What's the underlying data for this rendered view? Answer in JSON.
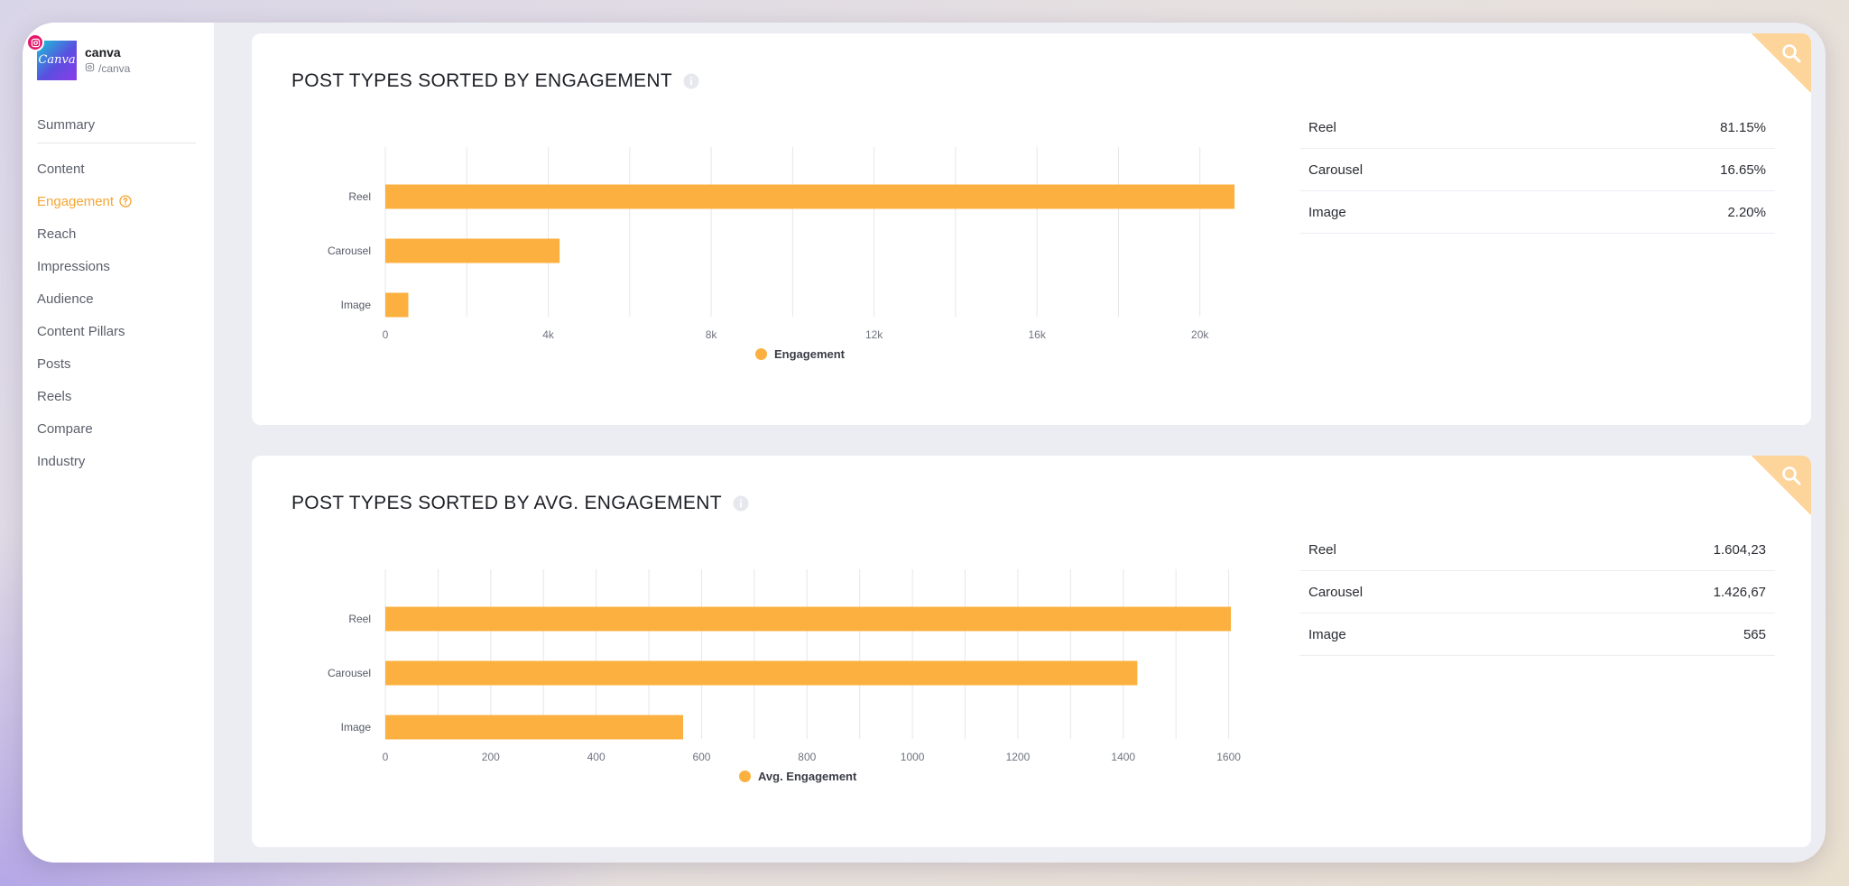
{
  "profile": {
    "name": "canva",
    "handle": "/canva",
    "avatar_text": "Canva",
    "brand_gradient": [
      "#19c3d6",
      "#5b4fe0",
      "#8a3ce8"
    ],
    "badge_color": "#e4186b"
  },
  "sidebar": {
    "items": [
      {
        "label": "Summary",
        "name": "sidebar-item-summary",
        "active": false
      },
      {
        "label": "Content",
        "name": "sidebar-item-content",
        "active": false
      },
      {
        "label": "Engagement",
        "name": "sidebar-item-engagement",
        "active": true
      },
      {
        "label": "Reach",
        "name": "sidebar-item-reach",
        "active": false
      },
      {
        "label": "Impressions",
        "name": "sidebar-item-impressions",
        "active": false
      },
      {
        "label": "Audience",
        "name": "sidebar-item-audience",
        "active": false
      },
      {
        "label": "Content Pillars",
        "name": "sidebar-item-content-pillars",
        "active": false
      },
      {
        "label": "Posts",
        "name": "sidebar-item-posts",
        "active": false
      },
      {
        "label": "Reels",
        "name": "sidebar-item-reels",
        "active": false
      },
      {
        "label": "Compare",
        "name": "sidebar-item-compare",
        "active": false
      },
      {
        "label": "Industry",
        "name": "sidebar-item-industry",
        "active": false
      }
    ]
  },
  "colors": {
    "accent": "#f5a533",
    "bar": "#fbb040",
    "corner": "#fdd49a"
  },
  "cards": [
    {
      "title": "POST TYPES SORTED BY ENGAGEMENT",
      "stats": [
        {
          "label": "Reel",
          "value": "81.15%"
        },
        {
          "label": "Carousel",
          "value": "16.65%"
        },
        {
          "label": "Image",
          "value": "2.20%"
        }
      ]
    },
    {
      "title": "POST TYPES SORTED BY AVG. ENGAGEMENT",
      "stats": [
        {
          "label": "Reel",
          "value": "1.604,23"
        },
        {
          "label": "Carousel",
          "value": "1.426,67"
        },
        {
          "label": "Image",
          "value": "565"
        }
      ]
    }
  ],
  "chart_data": [
    {
      "type": "bar",
      "orientation": "horizontal",
      "title": "POST TYPES SORTED BY ENGAGEMENT",
      "categories": [
        "Reel",
        "Carousel",
        "Image"
      ],
      "series": [
        {
          "name": "Engagement",
          "values": [
            20850,
            4279,
            565
          ]
        }
      ],
      "xlim": [
        0,
        22000
      ],
      "ticks": [
        0,
        4000,
        8000,
        12000,
        16000,
        20000
      ],
      "tick_labels": [
        "0",
        "4k",
        "8k",
        "12k",
        "16k",
        "20k"
      ],
      "grid_step": 2000,
      "xlabel": "",
      "ylabel": "",
      "legend": "bottom-center"
    },
    {
      "type": "bar",
      "orientation": "horizontal",
      "title": "POST TYPES SORTED BY AVG. ENGAGEMENT",
      "categories": [
        "Reel",
        "Carousel",
        "Image"
      ],
      "series": [
        {
          "name": "Avg. Engagement",
          "values": [
            1604.23,
            1426.67,
            565
          ]
        }
      ],
      "xlim": [
        0,
        1700
      ],
      "ticks": [
        0,
        200,
        400,
        600,
        800,
        1000,
        1200,
        1400,
        1600
      ],
      "tick_labels": [
        "0",
        "200",
        "400",
        "600",
        "800",
        "1000",
        "1200",
        "1400",
        "1600"
      ],
      "grid_step": 100,
      "xlabel": "",
      "ylabel": "",
      "legend": "bottom-center"
    }
  ]
}
